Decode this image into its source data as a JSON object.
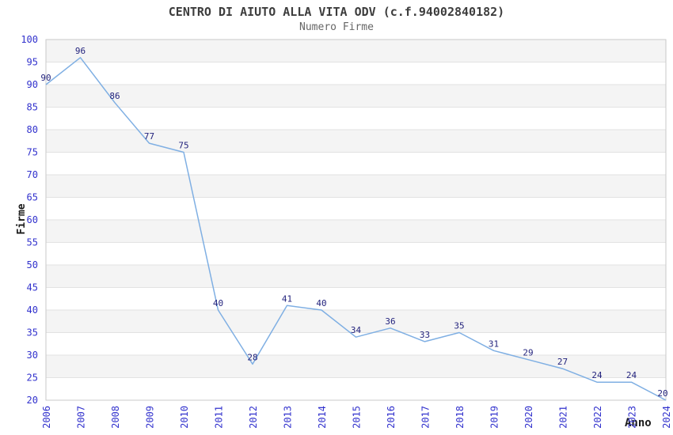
{
  "chart_data": {
    "type": "line",
    "title": "CENTRO DI AIUTO ALLA VITA ODV (c.f.94002840182)",
    "subtitle": "Numero Firme",
    "xlabel": "Anno",
    "ylabel": "Firme",
    "x": [
      2006,
      2007,
      2008,
      2009,
      2010,
      2011,
      2012,
      2013,
      2014,
      2015,
      2016,
      2017,
      2018,
      2019,
      2020,
      2021,
      2022,
      2023,
      2024
    ],
    "series": [
      {
        "name": "Numero Firme",
        "values": [
          90,
          96,
          86,
          77,
          75,
          40,
          28,
          41,
          40,
          34,
          36,
          33,
          35,
          31,
          29,
          27,
          24,
          24,
          20
        ]
      }
    ],
    "ylim": [
      20,
      100
    ],
    "ytick_step": 5,
    "yticks": [
      20,
      25,
      30,
      35,
      40,
      45,
      50,
      55,
      60,
      65,
      70,
      75,
      80,
      85,
      90,
      95,
      100
    ],
    "xtick_rotation": -90,
    "grid": true,
    "alternating_bands": true,
    "legend_position": "none",
    "point_labels_visible": true,
    "colors": {
      "line": "#7fafe3",
      "data_label": "#23237d",
      "tick_label": "#3232cd",
      "band": "#f4f4f4",
      "gridline": "#e2e2e2",
      "plot_border": "#c9c9c9",
      "title": "#3d3d3d",
      "subtitle": "#666666",
      "axis_label": "#1a1a1a",
      "background": "#ffffff"
    }
  }
}
